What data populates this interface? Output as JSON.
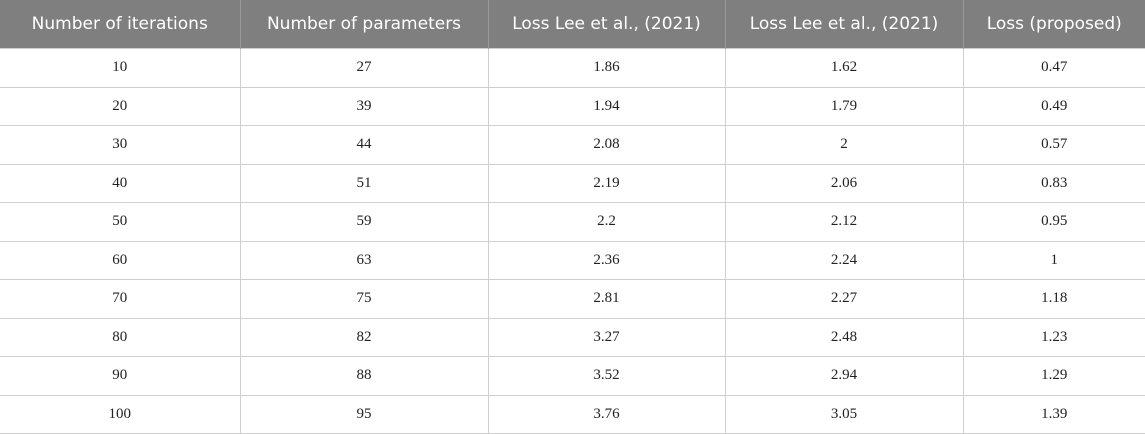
{
  "table": {
    "header": [
      "Number of iterations",
      "Number of parameters",
      "Loss Lee et al., (2021)",
      "Loss Lee et al., (2021)",
      "Loss (proposed)"
    ],
    "rows": [
      [
        10,
        27,
        1.86,
        1.62,
        0.47
      ],
      [
        20,
        39,
        1.94,
        1.79,
        0.49
      ],
      [
        30,
        44,
        2.08,
        2,
        0.57
      ],
      [
        40,
        51,
        2.19,
        2.06,
        0.83
      ],
      [
        50,
        59,
        2.2,
        2.12,
        0.95
      ],
      [
        60,
        63,
        2.36,
        2.24,
        1
      ],
      [
        70,
        75,
        2.81,
        2.27,
        1.18
      ],
      [
        80,
        82,
        3.27,
        2.48,
        1.23
      ],
      [
        90,
        88,
        3.52,
        2.94,
        1.29
      ],
      [
        100,
        95,
        3.76,
        3.05,
        1.39
      ]
    ]
  }
}
